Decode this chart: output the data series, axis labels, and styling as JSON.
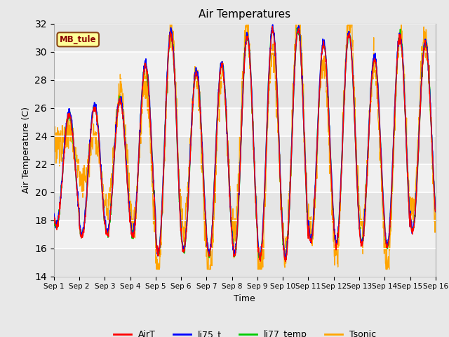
{
  "title": "Air Temperatures",
  "xlabel": "Time",
  "ylabel": "Air Temperature (C)",
  "ylim": [
    14,
    32
  ],
  "yticks": [
    14,
    16,
    18,
    20,
    22,
    24,
    26,
    28,
    30,
    32
  ],
  "site_label": "MB_tule",
  "legend_entries": [
    "AirT",
    "li75_t",
    "li77_temp",
    "Tsonic"
  ],
  "colors": {
    "AirT": "#FF0000",
    "li75_t": "#0000FF",
    "li77_temp": "#00CC00",
    "Tsonic": "#FFA500"
  },
  "bg_color": "#E8E8E8",
  "plot_bg": "#F0F0F0",
  "days": 15,
  "points_per_day": 96,
  "seed": 12345
}
